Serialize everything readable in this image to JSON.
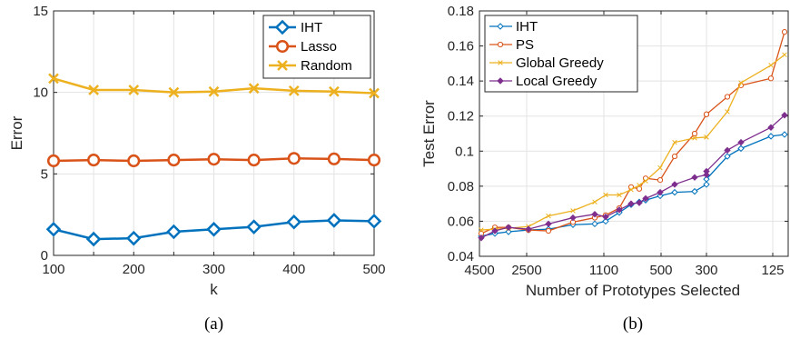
{
  "chart_data": [
    {
      "type": "line",
      "panel": "a",
      "caption": "(a)",
      "title": "",
      "xlabel": "k",
      "ylabel": "Error",
      "xlim": [
        100,
        500
      ],
      "ylim": [
        0,
        15
      ],
      "xticks": [
        "100",
        "150",
        "200",
        "250",
        "300",
        "350",
        "400",
        "450",
        "500"
      ],
      "xtick_labels": [
        "100",
        "200",
        "300",
        "400",
        "500"
      ],
      "yticks": [
        "0",
        "5",
        "10",
        "15"
      ],
      "grid": true,
      "legend_position": "top-right",
      "x": [
        100,
        150,
        200,
        250,
        300,
        350,
        400,
        450,
        500
      ],
      "series": [
        {
          "name": "IHT",
          "color": "#0072BD",
          "marker": "diamond",
          "values": [
            1.6,
            1.0,
            1.05,
            1.45,
            1.6,
            1.75,
            2.05,
            2.15,
            2.1
          ]
        },
        {
          "name": "Lasso",
          "color": "#D95319",
          "marker": "circle",
          "values": [
            5.8,
            5.85,
            5.8,
            5.85,
            5.9,
            5.85,
            5.95,
            5.92,
            5.85
          ]
        },
        {
          "name": "Random",
          "color": "#EDB120",
          "marker": "x",
          "values": [
            10.85,
            10.15,
            10.15,
            10.0,
            10.05,
            10.25,
            10.1,
            10.05,
            9.95
          ]
        }
      ]
    },
    {
      "type": "line",
      "panel": "b",
      "caption": "(b)",
      "title": "",
      "xlabel": "Number of Prototypes Selected",
      "ylabel": "Test Error",
      "xaxis_reversed": true,
      "xtick_labels": [
        "4500",
        "2500",
        "1100",
        "500",
        "300",
        "125"
      ],
      "yticks": [
        "0.04",
        "0.06",
        "0.08",
        "0.1",
        "0.12",
        "0.14",
        "0.16",
        "0.18"
      ],
      "ylim": [
        0.04,
        0.18
      ],
      "grid": true,
      "legend_position": "top-left",
      "series": [
        {
          "name": "IHT",
          "color": "#0072BD",
          "marker": "diamond",
          "x": [
            4500,
            3800,
            3200,
            2500,
            2200,
            1700,
            1400,
            1100,
            1000,
            900,
            800,
            700,
            600,
            500,
            400,
            350,
            300,
            250,
            200,
            125,
            100
          ],
          "values": [
            0.0515,
            0.053,
            0.054,
            0.055,
            0.0555,
            0.058,
            0.0585,
            0.06,
            0.065,
            0.0695,
            0.071,
            0.072,
            0.0745,
            0.0765,
            0.077,
            0.081,
            0.084,
            0.097,
            0.1015,
            0.1085,
            0.1095
          ]
        },
        {
          "name": "PS",
          "color": "#D95319",
          "marker": "circle",
          "x": [
            4500,
            3800,
            3200,
            2500,
            2200,
            1700,
            1400,
            1100,
            1000,
            900,
            800,
            700,
            600,
            500,
            400,
            350,
            300,
            250,
            200,
            125,
            100
          ],
          "values": [
            0.053,
            0.0565,
            0.0565,
            0.055,
            0.0545,
            0.0595,
            0.062,
            0.0635,
            0.0675,
            0.0795,
            0.0785,
            0.0845,
            0.0835,
            0.097,
            0.11,
            0.121,
            0.121,
            0.131,
            0.1375,
            0.1415,
            0.168
          ]
        },
        {
          "name": "Global Greedy",
          "color": "#EDB120",
          "marker": "x",
          "x": [
            4500,
            3800,
            3200,
            2500,
            2200,
            1700,
            1400,
            1100,
            1000,
            900,
            800,
            700,
            600,
            500,
            400,
            350,
            300,
            250,
            200,
            125,
            100
          ],
          "values": [
            0.055,
            0.0555,
            0.056,
            0.057,
            0.063,
            0.066,
            0.071,
            0.075,
            0.075,
            0.078,
            0.0805,
            0.083,
            0.0905,
            0.105,
            0.1075,
            0.108,
            0.108,
            0.1225,
            0.139,
            0.149,
            0.155
          ]
        },
        {
          "name": "Local Greedy",
          "color": "#7E2F8E",
          "marker": "diamond-filled",
          "x": [
            4500,
            3800,
            3200,
            2500,
            2200,
            1700,
            1400,
            1100,
            1000,
            900,
            800,
            700,
            600,
            500,
            400,
            350,
            300,
            250,
            200,
            125,
            100
          ],
          "values": [
            0.0505,
            0.0545,
            0.0565,
            0.0555,
            0.0585,
            0.062,
            0.064,
            0.0625,
            0.0665,
            0.07,
            0.0705,
            0.073,
            0.0765,
            0.081,
            0.085,
            0.0865,
            0.0885,
            0.1005,
            0.105,
            0.1135,
            0.1205
          ]
        }
      ]
    }
  ]
}
